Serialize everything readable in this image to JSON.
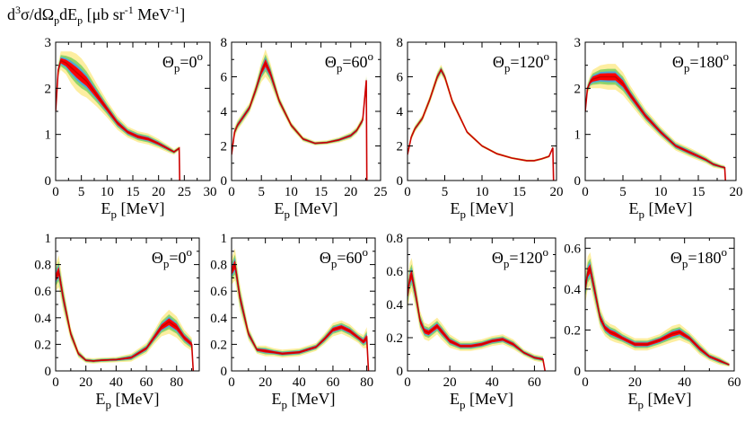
{
  "figure": {
    "ylabel_parts": {
      "d": "d",
      "three": "3",
      "sigma": "σ/dΩ",
      "p1": "p",
      "dE": "dE",
      "p2": "p",
      "units_open": " [μb sr",
      "minus1a": "-1",
      "mev": " MeV",
      "minus1b": "-1",
      "units_close": "]"
    },
    "ylabel": "d3σ/dΩpdEp [μb sr-1 MeV-1]",
    "xlabel": "Ep [MeV]",
    "xlabel_main": "E",
    "xlabel_sub": "p",
    "xlabel_unit": " [MeV]",
    "band_colors": [
      "#fdeea0",
      "#8fd36a",
      "#4aa9d8",
      "#ff0000"
    ],
    "line_color": "#cc0000"
  },
  "chart_data": [
    {
      "type": "line",
      "panel": "top-1",
      "title": "Θp=0o",
      "theta_main": "Θ",
      "theta_sub": "p",
      "theta_val": "=0",
      "theta_sup": "o",
      "xlim": [
        0,
        30
      ],
      "ylim": [
        0,
        3
      ],
      "xticks": [
        0,
        5,
        10,
        15,
        20,
        25,
        30
      ],
      "yticks": [
        0,
        1,
        2,
        3
      ],
      "x": [
        0,
        0.5,
        1,
        2,
        3,
        4,
        5,
        6,
        8,
        10,
        12,
        14,
        16,
        18,
        20,
        22,
        23,
        24,
        24.1
      ],
      "y": [
        1.5,
        2.4,
        2.6,
        2.55,
        2.45,
        2.35,
        2.25,
        2.15,
        1.85,
        1.55,
        1.25,
        1.05,
        0.95,
        0.9,
        0.8,
        0.68,
        0.62,
        0.7,
        0
      ],
      "band_half_width": [
        0.1,
        0.15,
        0.2,
        0.25,
        0.35,
        0.4,
        0.4,
        0.35,
        0.25,
        0.18,
        0.15,
        0.12,
        0.12,
        0.12,
        0.1,
        0.08,
        0.06,
        0.05,
        0.03
      ]
    },
    {
      "type": "line",
      "panel": "top-2",
      "title": "Θp=60o",
      "theta_main": "Θ",
      "theta_sub": "p",
      "theta_val": "=60",
      "theta_sup": "o",
      "xlim": [
        0,
        25
      ],
      "ylim": [
        0,
        8
      ],
      "xticks": [
        0,
        5,
        10,
        15,
        20,
        25
      ],
      "yticks": [
        0,
        2,
        4,
        6,
        8
      ],
      "x": [
        0,
        0.5,
        1,
        2,
        3,
        4,
        5,
        5.7,
        6.5,
        8,
        10,
        12,
        14,
        16,
        18,
        20,
        21,
        22,
        22.6,
        22.7
      ],
      "y": [
        1.5,
        2.8,
        3.2,
        3.7,
        4.2,
        5.2,
        6.3,
        6.8,
        6.2,
        4.6,
        3.2,
        2.4,
        2.15,
        2.2,
        2.35,
        2.6,
        2.9,
        3.5,
        5.8,
        0
      ],
      "band_half_width": [
        0.2,
        0.3,
        0.3,
        0.3,
        0.3,
        0.4,
        0.6,
        0.8,
        0.6,
        0.3,
        0.2,
        0.15,
        0.12,
        0.12,
        0.15,
        0.2,
        0.2,
        0.25,
        0.3,
        0.1
      ]
    },
    {
      "type": "line",
      "panel": "top-3",
      "title": "Θp=120o",
      "theta_main": "Θ",
      "theta_sub": "p",
      "theta_val": "=120",
      "theta_sup": "o",
      "xlim": [
        0,
        20
      ],
      "ylim": [
        0,
        8
      ],
      "xticks": [
        0,
        5,
        10,
        15,
        20
      ],
      "yticks": [
        0,
        2,
        4,
        6,
        8
      ],
      "x": [
        0,
        0.5,
        1,
        2,
        3,
        4,
        4.5,
        5,
        6,
        8,
        10,
        12,
        14,
        16,
        17,
        18,
        19,
        19.5,
        19.6
      ],
      "y": [
        1.5,
        2.5,
        3.0,
        3.6,
        4.7,
        6.0,
        6.4,
        6.0,
        4.6,
        2.8,
        2.0,
        1.55,
        1.3,
        1.15,
        1.15,
        1.25,
        1.4,
        1.9,
        0
      ],
      "band_half_width": [
        0.15,
        0.2,
        0.2,
        0.2,
        0.25,
        0.3,
        0.3,
        0.25,
        0.2,
        0.1,
        0.08,
        0.07,
        0.07,
        0.07,
        0.07,
        0.07,
        0.08,
        0.1,
        0.05
      ]
    },
    {
      "type": "line",
      "panel": "top-4",
      "title": "Θp=180o",
      "theta_main": "Θ",
      "theta_sub": "p",
      "theta_val": "=180",
      "theta_sup": "o",
      "xlim": [
        0,
        20
      ],
      "ylim": [
        0,
        3
      ],
      "xticks": [
        0,
        5,
        10,
        15,
        20
      ],
      "yticks": [
        0,
        1,
        2,
        3
      ],
      "x": [
        0,
        0.3,
        0.7,
        1,
        2,
        3,
        4,
        5,
        6,
        8,
        10,
        12,
        14,
        16,
        17,
        18,
        18.5,
        18.6
      ],
      "y": [
        1.5,
        2.0,
        2.15,
        2.2,
        2.25,
        2.25,
        2.25,
        2.1,
        1.85,
        1.4,
        1.05,
        0.75,
        0.6,
        0.45,
        0.35,
        0.3,
        0.28,
        0
      ],
      "band_half_width": [
        0.1,
        0.12,
        0.15,
        0.2,
        0.25,
        0.28,
        0.28,
        0.25,
        0.2,
        0.15,
        0.12,
        0.1,
        0.1,
        0.08,
        0.07,
        0.05,
        0.05,
        0.03
      ]
    },
    {
      "type": "line",
      "panel": "bottom-1",
      "title": "Θp=0o",
      "theta_main": "Θ",
      "theta_sub": "p",
      "theta_val": "=0",
      "theta_sup": "o",
      "xlim": [
        0,
        95
      ],
      "ylim": [
        0,
        1
      ],
      "xticks": [
        0,
        20,
        40,
        60,
        80
      ],
      "yticks": [
        0,
        0.2,
        0.4,
        0.6,
        0.8,
        1
      ],
      "x": [
        0,
        2,
        5,
        10,
        15,
        20,
        25,
        30,
        40,
        50,
        60,
        65,
        70,
        75,
        80,
        85,
        90,
        91
      ],
      "y": [
        0.7,
        0.75,
        0.55,
        0.28,
        0.13,
        0.08,
        0.075,
        0.08,
        0.085,
        0.1,
        0.17,
        0.25,
        0.33,
        0.37,
        0.33,
        0.25,
        0.2,
        0
      ],
      "band_half_width": [
        0.1,
        0.12,
        0.1,
        0.05,
        0.03,
        0.02,
        0.02,
        0.02,
        0.02,
        0.03,
        0.04,
        0.05,
        0.07,
        0.09,
        0.08,
        0.06,
        0.05,
        0.03
      ]
    },
    {
      "type": "line",
      "panel": "bottom-2",
      "title": "Θp=60o",
      "theta_main": "Θ",
      "theta_sub": "p",
      "theta_val": "=60",
      "theta_sup": "o",
      "xlim": [
        0,
        85
      ],
      "ylim": [
        0,
        1
      ],
      "xticks": [
        0,
        20,
        40,
        60,
        80
      ],
      "yticks": [
        0,
        0.2,
        0.4,
        0.6,
        0.8,
        1
      ],
      "x": [
        0,
        2,
        5,
        10,
        15,
        20,
        25,
        30,
        40,
        50,
        55,
        60,
        65,
        70,
        75,
        78,
        80,
        81
      ],
      "y": [
        0.75,
        0.8,
        0.55,
        0.28,
        0.16,
        0.15,
        0.14,
        0.13,
        0.14,
        0.18,
        0.24,
        0.31,
        0.33,
        0.3,
        0.25,
        0.22,
        0.25,
        0
      ],
      "band_half_width": [
        0.1,
        0.12,
        0.1,
        0.05,
        0.03,
        0.04,
        0.03,
        0.03,
        0.03,
        0.03,
        0.04,
        0.05,
        0.05,
        0.05,
        0.04,
        0.05,
        0.08,
        0.03
      ]
    },
    {
      "type": "line",
      "panel": "bottom-3",
      "title": "Θp=120o",
      "theta_main": "Θ",
      "theta_sub": "p",
      "theta_val": "=120",
      "theta_sup": "o",
      "xlim": [
        0,
        70
      ],
      "ylim": [
        0,
        0.8
      ],
      "xticks": [
        0,
        20,
        40,
        60
      ],
      "yticks": [
        0,
        0.2,
        0.4,
        0.6,
        0.8
      ],
      "x": [
        0,
        1,
        2,
        4,
        6,
        8,
        10,
        12,
        14,
        16,
        20,
        25,
        30,
        35,
        40,
        45,
        50,
        55,
        60,
        64,
        65
      ],
      "y": [
        0.45,
        0.55,
        0.58,
        0.45,
        0.3,
        0.24,
        0.23,
        0.25,
        0.27,
        0.24,
        0.18,
        0.15,
        0.15,
        0.16,
        0.18,
        0.19,
        0.16,
        0.11,
        0.08,
        0.07,
        0
      ],
      "band_half_width": [
        0.08,
        0.1,
        0.1,
        0.08,
        0.06,
        0.05,
        0.05,
        0.05,
        0.05,
        0.05,
        0.04,
        0.03,
        0.03,
        0.03,
        0.03,
        0.03,
        0.03,
        0.02,
        0.02,
        0.02,
        0.01
      ]
    },
    {
      "type": "line",
      "panel": "bottom-4",
      "title": "Θp=180o",
      "theta_main": "Θ",
      "theta_sub": "p",
      "theta_val": "=180",
      "theta_sup": "o",
      "xlim": [
        0,
        60
      ],
      "ylim": [
        0,
        0.65
      ],
      "xticks": [
        0,
        20,
        40,
        60
      ],
      "yticks": [
        0,
        0.2,
        0.4,
        0.6
      ],
      "x": [
        0,
        1,
        2,
        4,
        6,
        8,
        10,
        12,
        15,
        20,
        25,
        30,
        35,
        38,
        42,
        46,
        50,
        54,
        58
      ],
      "y": [
        0.4,
        0.48,
        0.5,
        0.38,
        0.26,
        0.21,
        0.19,
        0.18,
        0.16,
        0.13,
        0.13,
        0.15,
        0.18,
        0.19,
        0.16,
        0.11,
        0.07,
        0.05,
        0.03
      ],
      "band_half_width": [
        0.07,
        0.08,
        0.08,
        0.07,
        0.05,
        0.04,
        0.04,
        0.04,
        0.03,
        0.03,
        0.03,
        0.03,
        0.04,
        0.04,
        0.03,
        0.03,
        0.02,
        0.02,
        0.01
      ]
    }
  ]
}
